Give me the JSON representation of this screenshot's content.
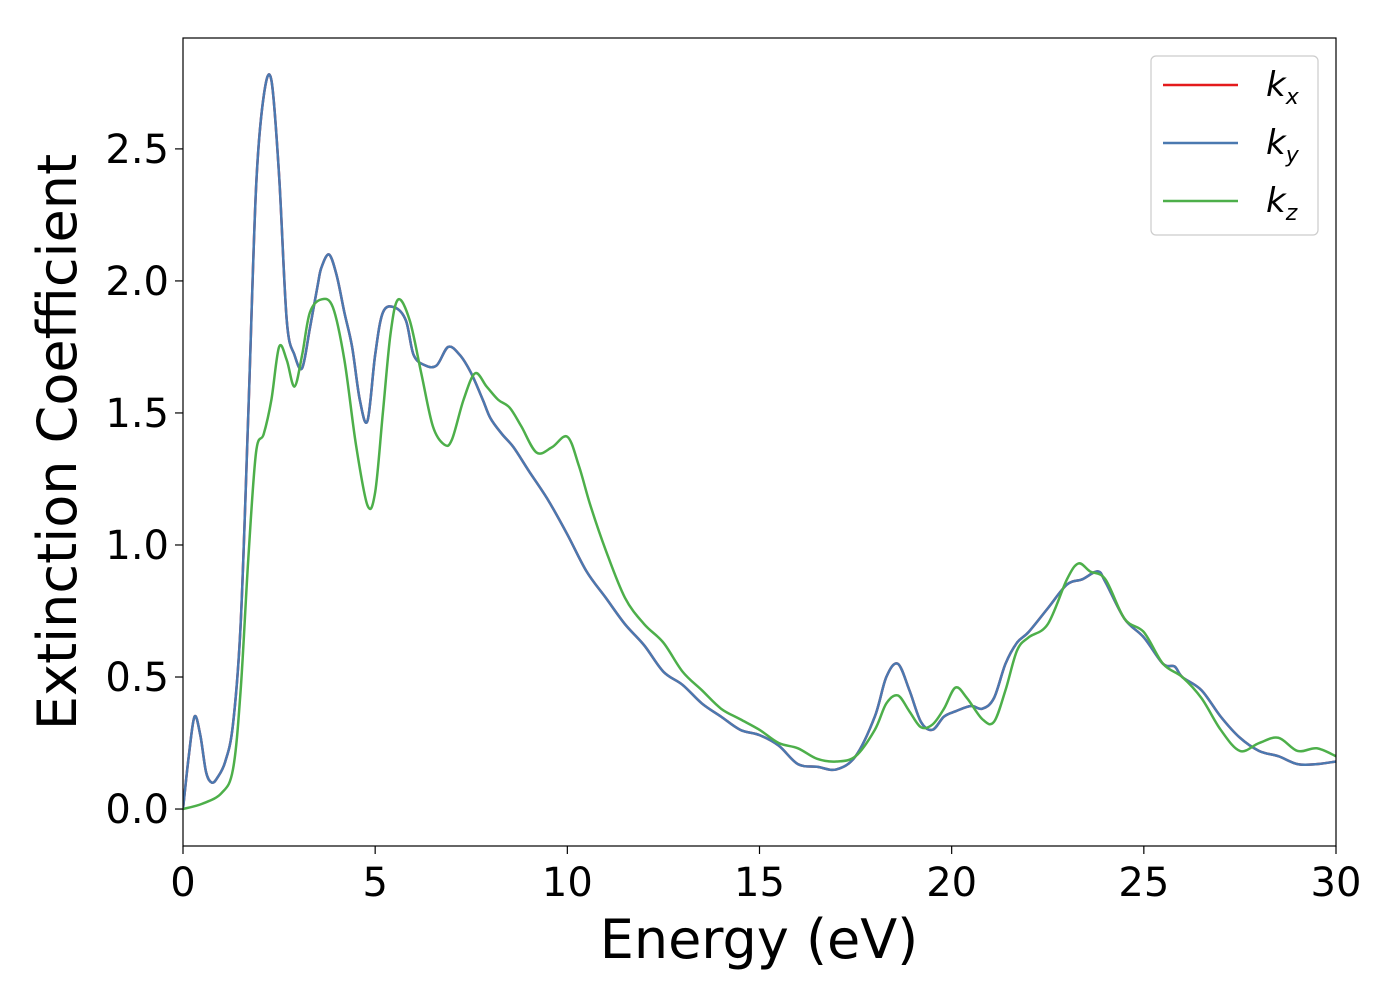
{
  "chart_data": {
    "type": "line",
    "title": "",
    "xlabel": "Energy (eV)",
    "ylabel": "Extinction Coefficient",
    "xlim": [
      0,
      30
    ],
    "ylim": [
      -0.14,
      2.92
    ],
    "xticks": [
      0,
      5,
      10,
      15,
      20,
      25,
      30
    ],
    "yticks": [
      0.0,
      0.5,
      1.0,
      1.5,
      2.0,
      2.5
    ],
    "xtick_labels": [
      "0",
      "5",
      "10",
      "15",
      "20",
      "25",
      "30"
    ],
    "ytick_labels": [
      "0.0",
      "0.5",
      "1.0",
      "1.5",
      "2.0",
      "2.5"
    ],
    "grid": false,
    "legend_position": "top-right",
    "series": [
      {
        "name": "k_x",
        "label_main": "k",
        "label_sub": "x",
        "color": "#e41a1c",
        "x": [
          0,
          0.15,
          0.3,
          0.45,
          0.6,
          0.75,
          0.9,
          1.1,
          1.3,
          1.5,
          1.7,
          1.9,
          2.1,
          2.3,
          2.5,
          2.7,
          2.9,
          3.1,
          3.3,
          3.5,
          3.6,
          3.8,
          4.0,
          4.2,
          4.4,
          4.6,
          4.8,
          5.0,
          5.2,
          5.5,
          5.8,
          6.0,
          6.3,
          6.6,
          6.9,
          7.2,
          7.5,
          7.8,
          8.0,
          8.3,
          8.6,
          9.0,
          9.5,
          10.0,
          10.5,
          11.0,
          11.5,
          12.0,
          12.5,
          13.0,
          13.5,
          14.0,
          14.5,
          15.0,
          15.5,
          16.0,
          16.5,
          17.0,
          17.5,
          18.0,
          18.3,
          18.6,
          18.9,
          19.2,
          19.5,
          19.8,
          20.1,
          20.5,
          20.8,
          21.1,
          21.4,
          21.7,
          22.0,
          22.5,
          23.0,
          23.4,
          23.8,
          24.0,
          24.5,
          25.0,
          25.5,
          25.8,
          26.0,
          26.5,
          27.0,
          27.5,
          28.0,
          28.5,
          29.0,
          29.5,
          30.0
        ],
        "y": [
          0.0,
          0.2,
          0.35,
          0.28,
          0.14,
          0.1,
          0.12,
          0.18,
          0.32,
          0.7,
          1.5,
          2.35,
          2.7,
          2.76,
          2.4,
          1.85,
          1.72,
          1.67,
          1.82,
          1.98,
          2.05,
          2.1,
          2.02,
          1.88,
          1.75,
          1.55,
          1.47,
          1.72,
          1.88,
          1.9,
          1.85,
          1.72,
          1.68,
          1.68,
          1.75,
          1.72,
          1.65,
          1.55,
          1.48,
          1.42,
          1.37,
          1.28,
          1.17,
          1.04,
          0.9,
          0.8,
          0.7,
          0.62,
          0.52,
          0.47,
          0.4,
          0.35,
          0.3,
          0.28,
          0.24,
          0.17,
          0.16,
          0.15,
          0.2,
          0.35,
          0.5,
          0.55,
          0.45,
          0.33,
          0.3,
          0.35,
          0.37,
          0.39,
          0.38,
          0.42,
          0.55,
          0.63,
          0.67,
          0.76,
          0.85,
          0.87,
          0.9,
          0.86,
          0.72,
          0.65,
          0.55,
          0.54,
          0.5,
          0.45,
          0.35,
          0.27,
          0.22,
          0.2,
          0.17,
          0.17,
          0.18
        ]
      },
      {
        "name": "k_y",
        "label_main": "k",
        "label_sub": "y",
        "color": "#4a79b0",
        "x": [
          0,
          0.15,
          0.3,
          0.45,
          0.6,
          0.75,
          0.9,
          1.1,
          1.3,
          1.5,
          1.7,
          1.9,
          2.1,
          2.3,
          2.5,
          2.7,
          2.9,
          3.1,
          3.3,
          3.5,
          3.6,
          3.8,
          4.0,
          4.2,
          4.4,
          4.6,
          4.8,
          5.0,
          5.2,
          5.5,
          5.8,
          6.0,
          6.3,
          6.6,
          6.9,
          7.2,
          7.5,
          7.8,
          8.0,
          8.3,
          8.6,
          9.0,
          9.5,
          10.0,
          10.5,
          11.0,
          11.5,
          12.0,
          12.5,
          13.0,
          13.5,
          14.0,
          14.5,
          15.0,
          15.5,
          16.0,
          16.5,
          17.0,
          17.5,
          18.0,
          18.3,
          18.6,
          18.9,
          19.2,
          19.5,
          19.8,
          20.1,
          20.5,
          20.8,
          21.1,
          21.4,
          21.7,
          22.0,
          22.5,
          23.0,
          23.4,
          23.8,
          24.0,
          24.5,
          25.0,
          25.5,
          25.8,
          26.0,
          26.5,
          27.0,
          27.5,
          28.0,
          28.5,
          29.0,
          29.5,
          30.0
        ],
        "y": [
          0.0,
          0.2,
          0.35,
          0.28,
          0.14,
          0.1,
          0.12,
          0.18,
          0.32,
          0.7,
          1.5,
          2.35,
          2.7,
          2.76,
          2.4,
          1.85,
          1.72,
          1.67,
          1.82,
          1.98,
          2.05,
          2.1,
          2.02,
          1.88,
          1.75,
          1.55,
          1.47,
          1.72,
          1.88,
          1.9,
          1.85,
          1.72,
          1.68,
          1.68,
          1.75,
          1.72,
          1.65,
          1.55,
          1.48,
          1.42,
          1.37,
          1.28,
          1.17,
          1.04,
          0.9,
          0.8,
          0.7,
          0.62,
          0.52,
          0.47,
          0.4,
          0.35,
          0.3,
          0.28,
          0.24,
          0.17,
          0.16,
          0.15,
          0.2,
          0.35,
          0.5,
          0.55,
          0.45,
          0.33,
          0.3,
          0.35,
          0.37,
          0.39,
          0.38,
          0.42,
          0.55,
          0.63,
          0.67,
          0.76,
          0.85,
          0.87,
          0.9,
          0.86,
          0.72,
          0.65,
          0.55,
          0.54,
          0.5,
          0.45,
          0.35,
          0.27,
          0.22,
          0.2,
          0.17,
          0.17,
          0.18
        ]
      },
      {
        "name": "k_z",
        "label_main": "k",
        "label_sub": "z",
        "color": "#4daf4a",
        "x": [
          0,
          0.5,
          1.0,
          1.3,
          1.5,
          1.7,
          1.9,
          2.1,
          2.3,
          2.5,
          2.7,
          2.9,
          3.1,
          3.3,
          3.6,
          3.9,
          4.2,
          4.5,
          4.8,
          5.0,
          5.2,
          5.4,
          5.6,
          5.9,
          6.2,
          6.5,
          6.8,
          7.0,
          7.3,
          7.6,
          7.9,
          8.2,
          8.5,
          8.8,
          9.2,
          9.6,
          10.0,
          10.3,
          10.6,
          11.0,
          11.5,
          12.0,
          12.5,
          13.0,
          13.5,
          14.0,
          14.5,
          15.0,
          15.5,
          16.0,
          16.5,
          17.0,
          17.5,
          18.0,
          18.3,
          18.6,
          18.9,
          19.2,
          19.5,
          19.8,
          20.1,
          20.4,
          20.8,
          21.1,
          21.4,
          21.7,
          22.0,
          22.5,
          23.0,
          23.3,
          23.6,
          24.0,
          24.5,
          25.0,
          25.5,
          26.0,
          26.5,
          27.0,
          27.5,
          28.0,
          28.5,
          29.0,
          29.5,
          30.0
        ],
        "y": [
          0.0,
          0.02,
          0.06,
          0.15,
          0.45,
          0.95,
          1.35,
          1.42,
          1.55,
          1.75,
          1.7,
          1.6,
          1.72,
          1.88,
          1.93,
          1.9,
          1.7,
          1.38,
          1.15,
          1.2,
          1.5,
          1.8,
          1.93,
          1.85,
          1.65,
          1.45,
          1.38,
          1.4,
          1.55,
          1.65,
          1.6,
          1.55,
          1.52,
          1.45,
          1.35,
          1.37,
          1.41,
          1.3,
          1.15,
          0.98,
          0.8,
          0.7,
          0.63,
          0.52,
          0.45,
          0.38,
          0.34,
          0.3,
          0.25,
          0.23,
          0.19,
          0.18,
          0.2,
          0.3,
          0.4,
          0.43,
          0.37,
          0.31,
          0.32,
          0.38,
          0.46,
          0.42,
          0.34,
          0.33,
          0.45,
          0.6,
          0.65,
          0.7,
          0.87,
          0.93,
          0.9,
          0.87,
          0.72,
          0.67,
          0.55,
          0.5,
          0.42,
          0.3,
          0.22,
          0.25,
          0.27,
          0.22,
          0.23,
          0.2
        ]
      }
    ]
  }
}
